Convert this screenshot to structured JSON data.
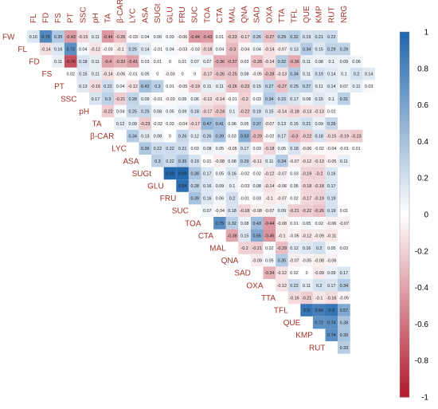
{
  "chart_data": {
    "type": "heatmap",
    "title": "",
    "variables": [
      "FW",
      "FL",
      "FD",
      "FS",
      "PT",
      "SSC",
      "pH",
      "TA",
      "β-CAR",
      "LYC",
      "ASA",
      "SUGt",
      "GLU",
      "FRU",
      "SUC",
      "TOA",
      "CTA",
      "MAL",
      "QNA",
      "SAD",
      "OXA",
      "TTA",
      "TFL",
      "QUE",
      "KMP",
      "RUT",
      "NRG"
    ],
    "column_labels": [
      "FL",
      "FD",
      "FS",
      "PT",
      "SSC",
      "pH",
      "TA",
      "β-CAR",
      "LYC",
      "ASA",
      "SUGt",
      "GLU",
      "FRU",
      "SUC",
      "TOA",
      "CTA",
      "MAL",
      "QNA",
      "SAD",
      "OXA",
      "TTA",
      "TFL",
      "QUE",
      "KMP",
      "RUT",
      "NRG"
    ],
    "row_labels": [
      "FW",
      "FL",
      "FD",
      "FS",
      "PT",
      "SSC",
      "pH",
      "TA",
      "β-CAR",
      "LYC",
      "ASA",
      "SUGt",
      "GLU",
      "FRU",
      "SUC",
      "TOA",
      "CTA",
      "MAL",
      "QNA",
      "SAD",
      "OXA",
      "TTA",
      "TFL",
      "QUE",
      "KMP",
      "RUT"
    ],
    "matrix": [
      [
        0.16,
        0.78,
        0.35,
        -0.43,
        -0.15,
        0.11,
        -0.44,
        -0.26,
        -0.03,
        0.04,
        0.06,
        0.03,
        -0.06,
        -0.44,
        -0.43,
        0.01,
        -0.23,
        -0.17,
        0.26,
        -0.27,
        0.29,
        0.32,
        0.19,
        0.21,
        0.22
      ],
      [
        -0.14,
        0.16,
        0.73,
        0.04,
        -0.12,
        -0.03,
        -0.1,
        0.25,
        0.14,
        -0.01,
        0.04,
        -0.03,
        -0.03,
        -0.18,
        0.04,
        -0.3,
        -0.04,
        0.04,
        -0.14,
        -0.07,
        0.13,
        0.34,
        0.15,
        0.29,
        0.29
      ],
      [
        0.11,
        -0.76,
        0.18,
        0.11,
        -0.4,
        -0.33,
        -0.41,
        0.03,
        0.01,
        0,
        0.01,
        0.07,
        0.07,
        -0.36,
        -0.37,
        0.03,
        -0.28,
        -0.14,
        0.32,
        -0.36,
        0.11,
        0.08,
        0.1,
        0.09,
        0.06
      ],
      [
        0.02,
        0.15,
        0.11,
        -0.14,
        -0.06,
        -0.01,
        0.05,
        0,
        -0.03,
        0,
        0,
        -0.17,
        -0.26,
        -0.25,
        0.08,
        -0.05,
        -0.28,
        -0.13,
        0.34,
        0.11,
        0.19,
        0.14,
        0.1,
        0.2,
        0.14
      ],
      [
        0.13,
        -0.16,
        0.22,
        0.04,
        -0.12,
        0.42,
        0.3,
        0.01,
        -0.05,
        -0.19,
        0.11,
        0.11,
        -0.26,
        -0.23,
        0.15,
        0.27,
        -0.27,
        0.25,
        0.27,
        0.11,
        0.14,
        0.07,
        0.11,
        0.03
      ],
      [
        0.17,
        0.3,
        -0.21,
        0.28,
        0.09,
        -0.01,
        -0.03,
        0.05,
        0.06,
        -0.12,
        -0.14,
        -0.01,
        -0.2,
        0.03,
        0.34,
        0.23,
        0.17,
        0.08,
        0.15,
        0.1,
        0.31
      ],
      [
        -0.22,
        0.04,
        0.25,
        0.25,
        0.08,
        0.05,
        0.09,
        0.18,
        -0.17,
        -0.24,
        0.1,
        -0.22,
        0.18,
        0.15,
        -0.14,
        -0.18,
        -0.13,
        -0.13,
        0.02
      ],
      [
        0.12,
        0.09,
        -0.23,
        -0.02,
        0.03,
        -0.04,
        -0.17,
        0.47,
        0.41,
        0.06,
        0.05,
        0.37,
        -0.07,
        0.13,
        0.15,
        0.21,
        0.09,
        0.26
      ],
      [
        0.34,
        0.13,
        0.08,
        0,
        0.26,
        0.12,
        0.26,
        0.39,
        0.03,
        0.53,
        -0.29,
        -0.02,
        0.17,
        -0.3,
        -0.22,
        0.18,
        -0.15,
        -0.19,
        -0.23
      ],
      [
        0.36,
        0.22,
        0.22,
        0.21,
        0.03,
        0.08,
        0.05,
        -0.05,
        0.17,
        0.03,
        -0.18,
        0.05,
        0.18,
        -0.06,
        -0.02,
        -0.04,
        -0.01,
        0.01
      ],
      [
        0.3,
        0.22,
        0.35,
        0.19,
        0.01,
        -0.08,
        0.08,
        0.29,
        -0.11,
        0.11,
        0.34,
        -0.07,
        -0.12,
        -0.13,
        -0.05,
        0.11
      ],
      [
        0.99,
        0.99,
        0.38,
        0.17,
        0.05,
        0.16,
        -0.02,
        0.02,
        -0.12,
        -0.07,
        0.03,
        -0.19,
        -0.2,
        0.16
      ],
      [
        0.94,
        0.28,
        0.16,
        0.09,
        0.1,
        -0.03,
        0.08,
        -0.14,
        -0.06,
        0.05,
        -0.18,
        -0.18,
        0.17
      ],
      [
        0.39,
        0.16,
        0.06,
        0.2,
        -0.01,
        0.03,
        -0.1,
        -0.07,
        0.02,
        -0.17,
        -0.19,
        0.19
      ],
      [
        0.07,
        -0.04,
        0.18,
        -0.18,
        -0.08,
        -0.07,
        0.09,
        -0.21,
        -0.22,
        -0.26,
        0.19,
        0.01
      ],
      [
        0.75,
        0.32,
        0.08,
        0.43,
        -0.44,
        -0.08,
        0.01,
        0.05,
        0.02,
        -0.06,
        -0.07
      ],
      [
        -0.38,
        0.15,
        0.56,
        -0.46,
        -0.1,
        -0.05,
        -0.12,
        -0.09,
        -0.11
      ],
      [
        -0.2,
        -0.21,
        0.02,
        -0.29,
        0.12,
        0.16,
        0.2,
        0.05,
        0.03
      ],
      [
        -0.09,
        0.05,
        0.35,
        -0.07,
        -0.05,
        -0.08,
        -0.06
      ],
      [
        -0.34,
        -0.12,
        0.02,
        0,
        -0.09,
        0.09,
        0.17
      ],
      [
        -0.12,
        0.22,
        0.11,
        0.2,
        0.17,
        0.34
      ],
      [
        -0.16,
        -0.21,
        -0.1,
        -0.16,
        -0.05
      ],
      [
        0.9,
        0.84,
        0.9,
        0.57
      ],
      [
        0.72,
        0.74,
        0.38
      ],
      [
        0.74,
        0.39
      ],
      [
        0.33
      ]
    ],
    "colorbar": {
      "min": -1,
      "max": 1,
      "ticks": [
        "1",
        "0.8",
        "0.6",
        "0.4",
        "0.2",
        "0",
        "-0.2",
        "-0.4",
        "-0.6",
        "-0.8",
        "-1"
      ]
    },
    "colors": {
      "positive": "#2166ac",
      "neutral": "#ffffff",
      "negative": "#b2182b",
      "label": "#a3342a"
    }
  }
}
